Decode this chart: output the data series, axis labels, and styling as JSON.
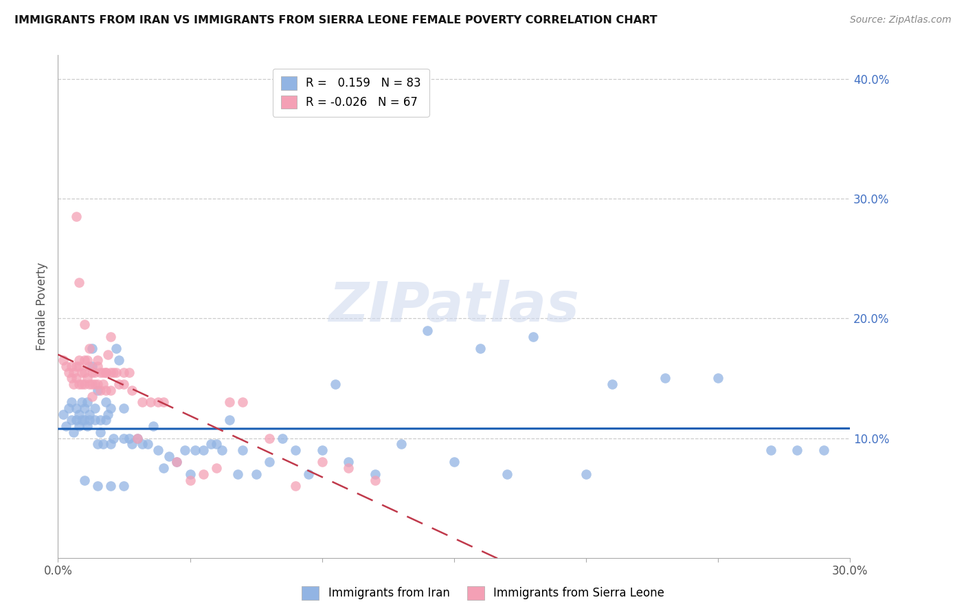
{
  "title": "IMMIGRANTS FROM IRAN VS IMMIGRANTS FROM SIERRA LEONE FEMALE POVERTY CORRELATION CHART",
  "source": "Source: ZipAtlas.com",
  "ylabel": "Female Poverty",
  "xlim": [
    0.0,
    0.3
  ],
  "ylim": [
    0.0,
    0.42
  ],
  "iran_R": 0.159,
  "iran_N": 83,
  "sierra_leone_R": -0.026,
  "sierra_leone_N": 67,
  "iran_color": "#92b4e3",
  "sierra_leone_color": "#f4a0b5",
  "iran_line_color": "#1a5fb4",
  "sierra_leone_line_color": "#c0394b",
  "watermark": "ZIPatlas",
  "iran_scatter_x": [
    0.002,
    0.003,
    0.004,
    0.005,
    0.005,
    0.006,
    0.007,
    0.007,
    0.008,
    0.008,
    0.009,
    0.009,
    0.01,
    0.01,
    0.011,
    0.011,
    0.012,
    0.012,
    0.013,
    0.013,
    0.014,
    0.014,
    0.015,
    0.015,
    0.016,
    0.016,
    0.017,
    0.018,
    0.018,
    0.019,
    0.02,
    0.02,
    0.021,
    0.022,
    0.023,
    0.025,
    0.025,
    0.027,
    0.028,
    0.03,
    0.032,
    0.034,
    0.036,
    0.038,
    0.04,
    0.042,
    0.045,
    0.048,
    0.05,
    0.052,
    0.055,
    0.058,
    0.06,
    0.062,
    0.065,
    0.068,
    0.07,
    0.075,
    0.08,
    0.085,
    0.09,
    0.095,
    0.1,
    0.105,
    0.11,
    0.12,
    0.13,
    0.14,
    0.15,
    0.16,
    0.17,
    0.18,
    0.2,
    0.21,
    0.23,
    0.25,
    0.27,
    0.28,
    0.29,
    0.01,
    0.015,
    0.02,
    0.025
  ],
  "iran_scatter_y": [
    0.12,
    0.11,
    0.125,
    0.115,
    0.13,
    0.105,
    0.115,
    0.125,
    0.12,
    0.11,
    0.115,
    0.13,
    0.125,
    0.115,
    0.13,
    0.11,
    0.12,
    0.115,
    0.175,
    0.16,
    0.125,
    0.115,
    0.14,
    0.095,
    0.115,
    0.105,
    0.095,
    0.13,
    0.115,
    0.12,
    0.125,
    0.095,
    0.1,
    0.175,
    0.165,
    0.125,
    0.1,
    0.1,
    0.095,
    0.1,
    0.095,
    0.095,
    0.11,
    0.09,
    0.075,
    0.085,
    0.08,
    0.09,
    0.07,
    0.09,
    0.09,
    0.095,
    0.095,
    0.09,
    0.115,
    0.07,
    0.09,
    0.07,
    0.08,
    0.1,
    0.09,
    0.07,
    0.09,
    0.145,
    0.08,
    0.07,
    0.095,
    0.19,
    0.08,
    0.175,
    0.07,
    0.185,
    0.07,
    0.145,
    0.15,
    0.15,
    0.09,
    0.09,
    0.09,
    0.065,
    0.06,
    0.06,
    0.06
  ],
  "sierra_leone_scatter_x": [
    0.002,
    0.003,
    0.004,
    0.005,
    0.005,
    0.006,
    0.006,
    0.007,
    0.007,
    0.008,
    0.008,
    0.008,
    0.009,
    0.009,
    0.01,
    0.01,
    0.01,
    0.011,
    0.011,
    0.012,
    0.012,
    0.013,
    0.013,
    0.013,
    0.014,
    0.014,
    0.015,
    0.015,
    0.016,
    0.016,
    0.017,
    0.017,
    0.018,
    0.018,
    0.019,
    0.02,
    0.02,
    0.021,
    0.022,
    0.023,
    0.025,
    0.025,
    0.027,
    0.028,
    0.03,
    0.032,
    0.035,
    0.038,
    0.04,
    0.045,
    0.05,
    0.055,
    0.06,
    0.065,
    0.07,
    0.08,
    0.09,
    0.1,
    0.11,
    0.12,
    0.007,
    0.008,
    0.01,
    0.012,
    0.015,
    0.018,
    0.02
  ],
  "sierra_leone_scatter_y": [
    0.165,
    0.16,
    0.155,
    0.16,
    0.15,
    0.155,
    0.145,
    0.16,
    0.15,
    0.165,
    0.16,
    0.145,
    0.155,
    0.145,
    0.165,
    0.155,
    0.145,
    0.165,
    0.15,
    0.16,
    0.145,
    0.155,
    0.145,
    0.135,
    0.155,
    0.145,
    0.16,
    0.145,
    0.155,
    0.14,
    0.155,
    0.145,
    0.155,
    0.14,
    0.17,
    0.155,
    0.14,
    0.155,
    0.155,
    0.145,
    0.155,
    0.145,
    0.155,
    0.14,
    0.1,
    0.13,
    0.13,
    0.13,
    0.13,
    0.08,
    0.065,
    0.07,
    0.075,
    0.13,
    0.13,
    0.1,
    0.06,
    0.08,
    0.075,
    0.065,
    0.285,
    0.23,
    0.195,
    0.175,
    0.165,
    0.155,
    0.185
  ]
}
